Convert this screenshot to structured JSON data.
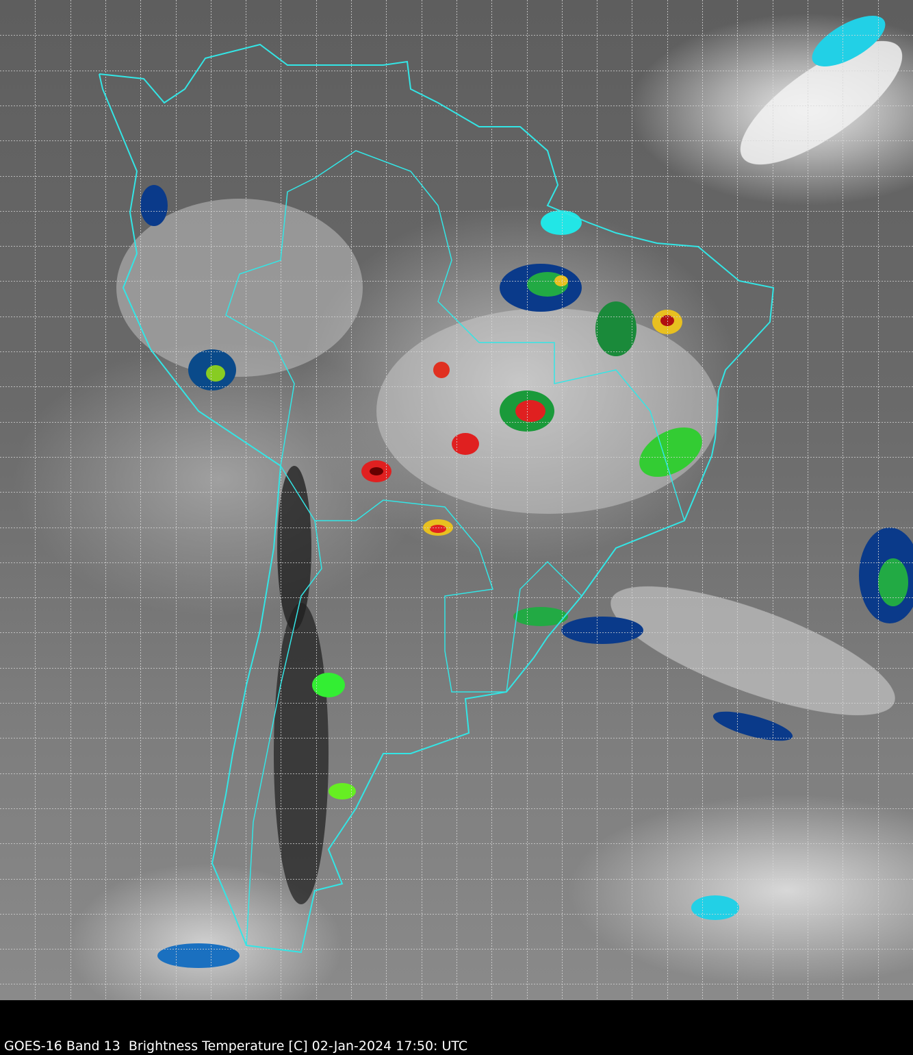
{
  "caption": "GOES-16 Band 13  Brightness Temperature [C] 02-Jan-2024 17:50: UTC",
  "colors": {
    "borders": "#33e6e6",
    "grid": "#d8d8d8",
    "background": "#000000"
  }
}
